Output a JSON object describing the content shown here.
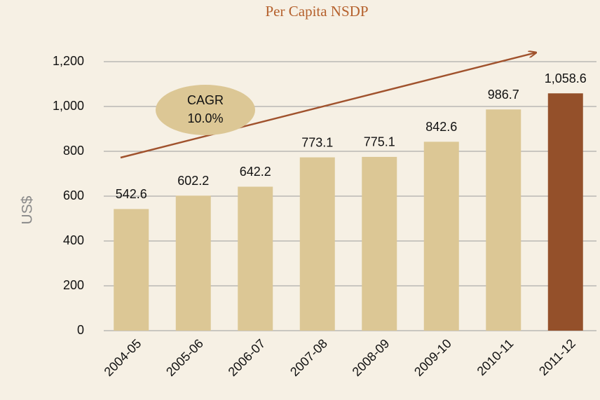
{
  "chart_data": {
    "type": "bar",
    "title": "Per Capita NSDP",
    "y_label": "US$",
    "categories": [
      "2004-05",
      "2005-06",
      "2006-07",
      "2007-08",
      "2008-09",
      "2009-10",
      "2010-11",
      "2011-12"
    ],
    "values": [
      542.6,
      602.2,
      642.2,
      773.1,
      775.1,
      842.6,
      986.7,
      1058.6
    ],
    "value_labels": [
      "542.6",
      "602.2",
      "642.2",
      "773.1",
      "775.1",
      "842.6",
      "986.7",
      "1,058.6"
    ],
    "colors": [
      "#dcc795",
      "#dcc795",
      "#dcc795",
      "#dcc795",
      "#dcc795",
      "#dcc795",
      "#dcc795",
      "#94502a"
    ],
    "ylim": [
      0,
      1200
    ],
    "yticks": [
      0,
      200,
      400,
      600,
      800,
      {
        "value": 1000,
        "label": "1,000"
      },
      {
        "value": 1200,
        "label": "1,200"
      }
    ],
    "grid": true,
    "annotations": [
      "CAGR",
      "10.0%"
    ]
  }
}
